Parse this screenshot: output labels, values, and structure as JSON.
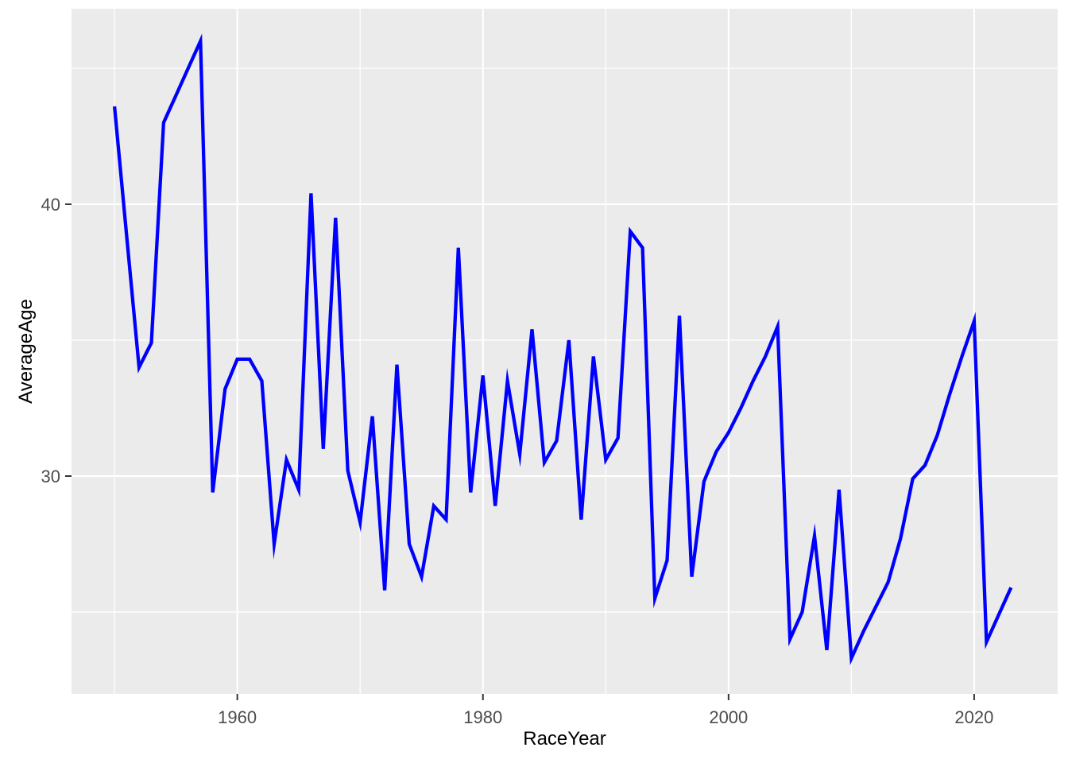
{
  "chart_data": {
    "type": "line",
    "title": "",
    "xlabel": "RaceYear",
    "ylabel": "AverageAge",
    "legend": "none",
    "grid": "on",
    "panel_bg": "#EBEBEB",
    "grid_color": "#FFFFFF",
    "line_color": "#0000FF",
    "tick_label_color": "#4D4D4D",
    "tick_mark_color": "#333333",
    "axis_title_color": "#000000",
    "x_tick_labels": [
      "1960",
      "1980",
      "2000",
      "2020"
    ],
    "x_ticks": [
      1960,
      1980,
      2000,
      2020
    ],
    "x_minor_ticks": [
      1950,
      1970,
      1990,
      2010
    ],
    "y_tick_labels": [
      "30",
      "40"
    ],
    "y_ticks": [
      30,
      40
    ],
    "y_minor_ticks": [
      25,
      35,
      45
    ],
    "xlim": [
      1946.5,
      2026.8
    ],
    "ylim": [
      21.99,
      47.19
    ],
    "series": [
      {
        "name": "AverageAge",
        "x": [
          1950,
          1951,
          1952,
          1953,
          1954,
          1955,
          1956,
          1957,
          1958,
          1959,
          1960,
          1961,
          1962,
          1963,
          1964,
          1965,
          1966,
          1967,
          1968,
          1969,
          1970,
          1971,
          1972,
          1973,
          1974,
          1975,
          1976,
          1977,
          1978,
          1979,
          1980,
          1981,
          1982,
          1983,
          1984,
          1985,
          1986,
          1987,
          1988,
          1989,
          1990,
          1991,
          1992,
          1993,
          1994,
          1995,
          1996,
          1997,
          1998,
          1999,
          2000,
          2001,
          2002,
          2003,
          2004,
          2005,
          2006,
          2007,
          2008,
          2009,
          2010,
          2011,
          2012,
          2013,
          2014,
          2015,
          2016,
          2017,
          2018,
          2019,
          2020,
          2021,
          2022,
          2023
        ],
        "y": [
          43.6,
          38.8,
          34.0,
          34.9,
          43.0,
          44.0,
          45.0,
          46.0,
          29.4,
          33.2,
          34.3,
          34.3,
          33.5,
          27.5,
          30.6,
          29.5,
          40.4,
          31.0,
          39.5,
          30.2,
          28.3,
          32.2,
          25.8,
          34.1,
          27.5,
          26.3,
          28.9,
          28.4,
          38.4,
          29.4,
          33.7,
          28.9,
          33.5,
          30.8,
          35.4,
          30.5,
          31.3,
          35.0,
          28.4,
          34.4,
          30.6,
          31.4,
          39.0,
          38.4,
          25.5,
          26.9,
          35.9,
          26.3,
          29.8,
          30.9,
          31.6,
          32.5,
          33.5,
          34.4,
          35.5,
          24.0,
          25.0,
          27.8,
          23.6,
          29.5,
          23.3,
          24.3,
          25.2,
          26.1,
          27.7,
          29.9,
          30.4,
          31.5,
          33.0,
          34.4,
          35.7,
          23.9,
          24.9,
          25.9
        ]
      }
    ]
  }
}
